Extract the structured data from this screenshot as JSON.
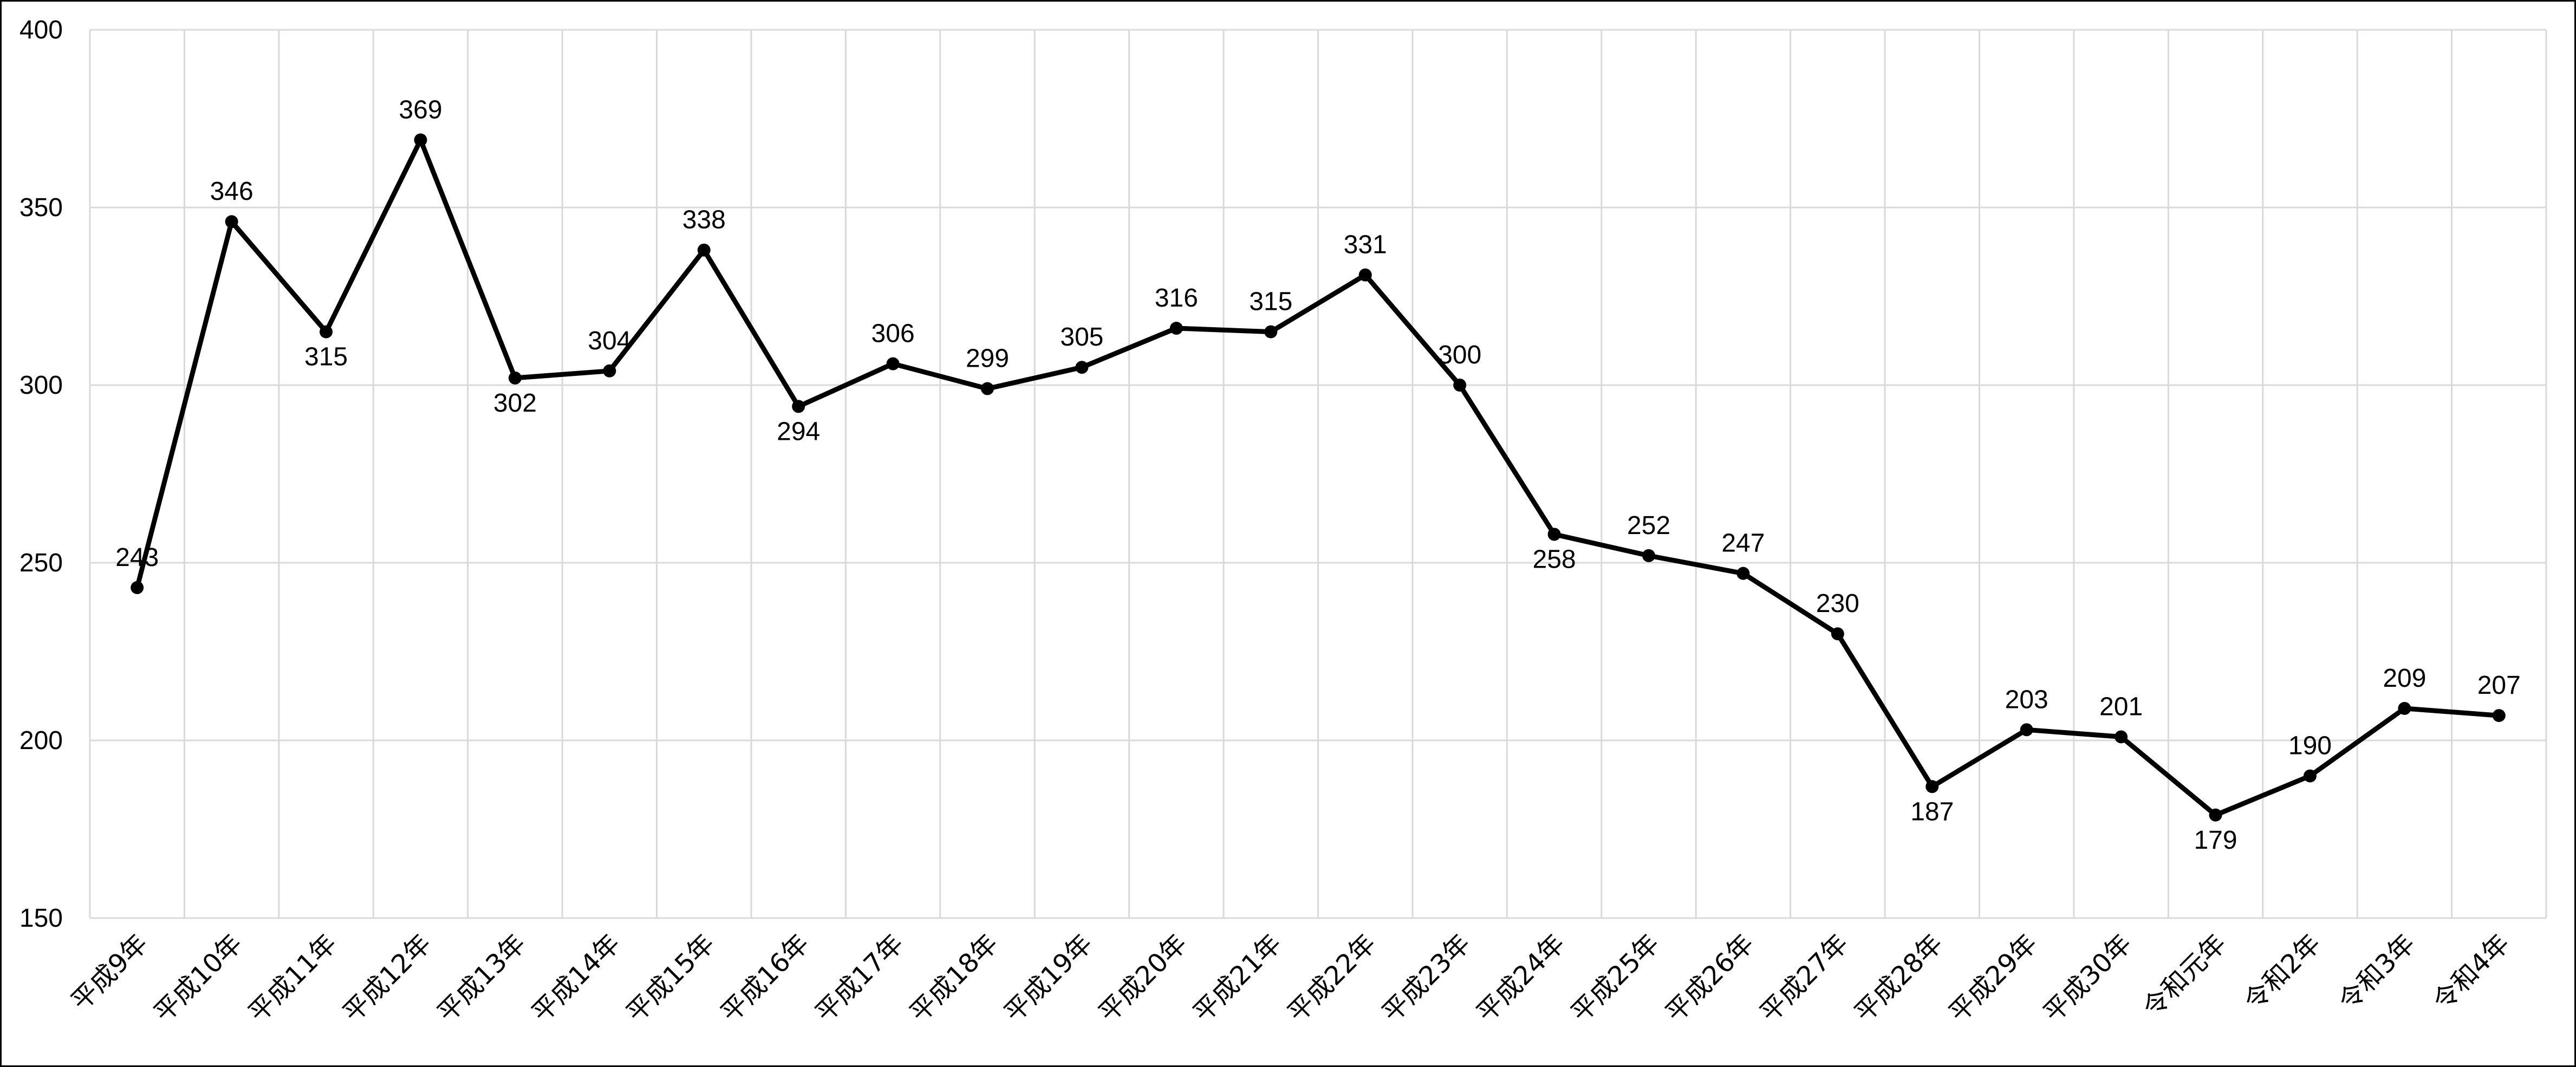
{
  "chart_data": {
    "type": "line",
    "categories": [
      "平成9年",
      "平成10年",
      "平成11年",
      "平成12年",
      "平成13年",
      "平成14年",
      "平成15年",
      "平成16年",
      "平成17年",
      "平成18年",
      "平成19年",
      "平成20年",
      "平成21年",
      "平成22年",
      "平成23年",
      "平成24年",
      "平成25年",
      "平成26年",
      "平成27年",
      "平成28年",
      "平成29年",
      "平成30年",
      "令和元年",
      "令和2年",
      "令和3年",
      "令和4年"
    ],
    "series": [
      {
        "values": [
          243,
          346,
          315,
          369,
          302,
          304,
          338,
          294,
          306,
          299,
          305,
          316,
          315,
          331,
          300,
          258,
          252,
          247,
          230,
          187,
          203,
          201,
          179,
          190,
          209,
          207
        ]
      }
    ],
    "ylim": [
      150,
      400
    ],
    "yticks": [
      150,
      200,
      250,
      300,
      350,
      400
    ],
    "grid": true,
    "legend": "none",
    "line_color": "#000000",
    "grid_color": "#d9d9d9",
    "label_position": [
      "above",
      "above",
      "below",
      "above",
      "below",
      "above",
      "above",
      "below",
      "above",
      "above",
      "above",
      "above",
      "above",
      "above",
      "above",
      "below",
      "above",
      "above",
      "above",
      "below",
      "above",
      "above",
      "below",
      "above",
      "above",
      "above"
    ]
  }
}
